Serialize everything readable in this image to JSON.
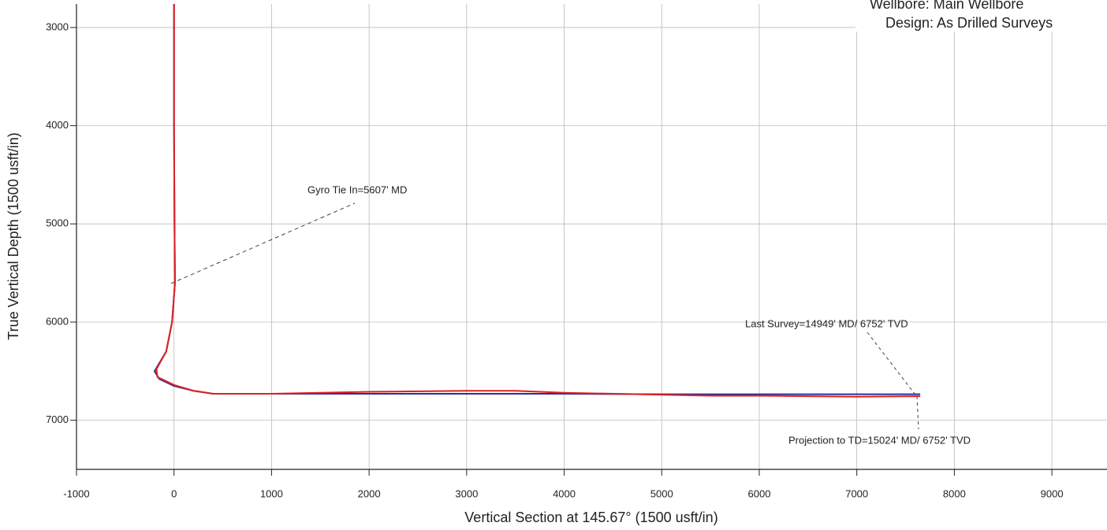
{
  "chart_data": {
    "type": "line",
    "x_label": "Vertical Section at 145.67° (1500 usft/in)",
    "y_label": "True Vertical Depth (1500 usft/in)",
    "xlim": [
      -1000,
      9565
    ],
    "ylim": [
      2760,
      7500
    ],
    "y_inverted": true,
    "grid": true,
    "xticks": [
      -1000,
      0,
      1000,
      2000,
      3000,
      4000,
      5000,
      6000,
      7000,
      8000,
      9000
    ],
    "yticks": [
      3000,
      4000,
      5000,
      6000,
      7000
    ],
    "header": [
      "Wellbore:  Main Wellbore",
      "Design:  As Drilled Surveys"
    ],
    "annotations": [
      "Gyro Tie In=5607' MD",
      "Last Survey=14949' MD/ 6752' TVD",
      "Projection to TD=15024' MD/ 6752' TVD"
    ],
    "series": [
      {
        "color": "#2b2f9a",
        "x": [
          0,
          0,
          5,
          10,
          -20,
          -80,
          -200,
          -150,
          0,
          200,
          400,
          2000,
          4000,
          5000,
          6000,
          7000,
          7650
        ],
        "values": [
          2760,
          4000,
          5000,
          5600,
          6000,
          6300,
          6500,
          6580,
          6650,
          6700,
          6730,
          6730,
          6730,
          6735,
          6735,
          6735,
          6735
        ]
      },
      {
        "color": "#e02020",
        "x": [
          0,
          0,
          5,
          10,
          -20,
          -80,
          -180,
          -170,
          0,
          200,
          400,
          1000,
          2000,
          3000,
          3500,
          4000,
          5000,
          5500,
          6000,
          7000,
          7650
        ],
        "values": [
          2760,
          4000,
          5000,
          5600,
          6000,
          6300,
          6480,
          6560,
          6640,
          6700,
          6730,
          6730,
          6710,
          6700,
          6700,
          6720,
          6740,
          6750,
          6750,
          6760,
          6755
        ]
      }
    ]
  }
}
